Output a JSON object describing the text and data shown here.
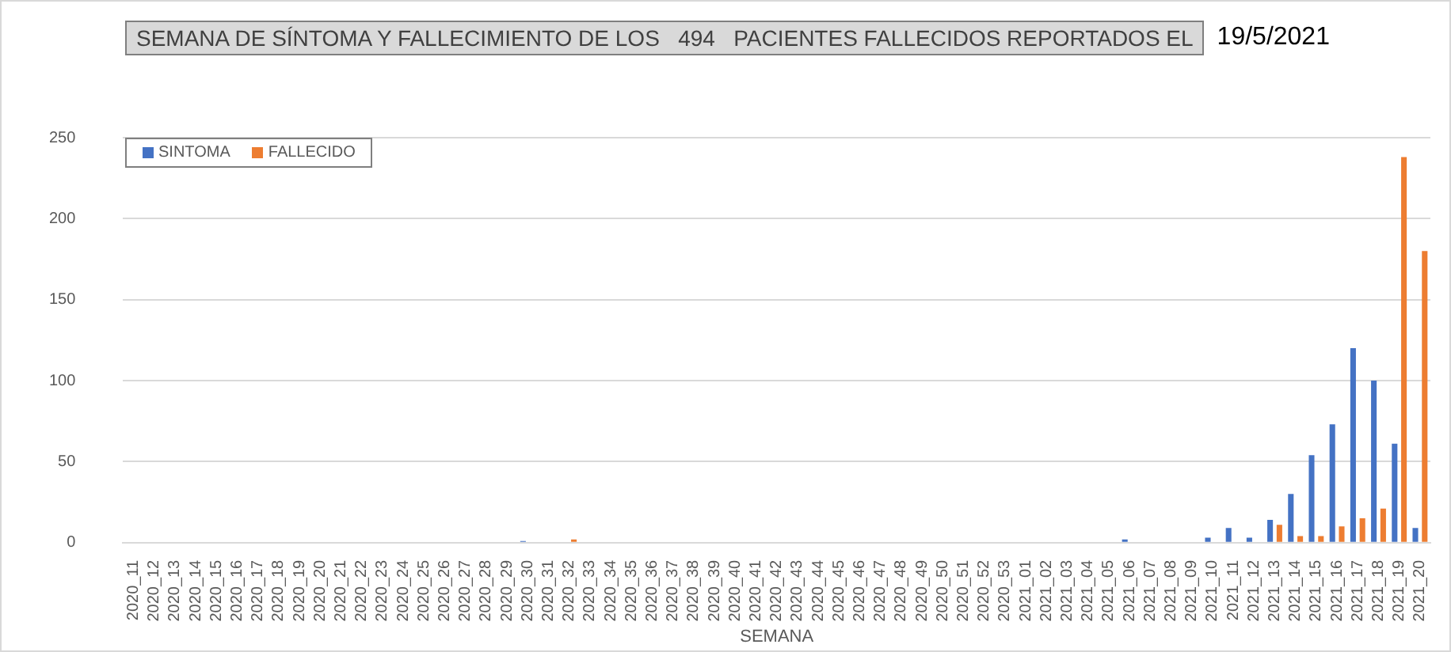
{
  "chart_data": {
    "type": "bar",
    "title": "SEMANA DE SÍNTOMA Y FALLECIMIENTO DE LOS   494   PACIENTES FALLECIDOS REPORTADOS EL",
    "subtitle": "19/5/2021",
    "xlabel": "SEMANA",
    "categories": [
      "2020_11",
      "2020_12",
      "2020_13",
      "2020_14",
      "2020_15",
      "2020_16",
      "2020_17",
      "2020_18",
      "2020_19",
      "2020_20",
      "2020_21",
      "2020_22",
      "2020_23",
      "2020_24",
      "2020_25",
      "2020_26",
      "2020_27",
      "2020_28",
      "2020_29",
      "2020_30",
      "2020_31",
      "2020_32",
      "2020_33",
      "2020_34",
      "2020_35",
      "2020_36",
      "2020_37",
      "2020_38",
      "2020_39",
      "2020_40",
      "2020_41",
      "2020_42",
      "2020_43",
      "2020_44",
      "2020_45",
      "2020_46",
      "2020_47",
      "2020_48",
      "2020_49",
      "2020_50",
      "2020_51",
      "2020_52",
      "2020_53",
      "2021_01",
      "2021_02",
      "2021_03",
      "2021_04",
      "2021_05",
      "2021_06",
      "2021_07",
      "2021_08",
      "2021_09",
      "2021_10",
      "2021_11",
      "2021_12",
      "2021_13",
      "2021_14",
      "2021_15",
      "2021_16",
      "2021_17",
      "2021_18",
      "2021_19",
      "2021_20"
    ],
    "series": [
      {
        "name": "SINTOMA",
        "color": "#4472c4",
        "values": [
          0,
          0,
          0,
          0,
          0,
          0,
          0,
          0,
          0,
          0,
          0,
          0,
          0,
          0,
          0,
          0,
          0,
          0,
          0,
          1,
          0,
          0,
          0,
          0,
          0,
          0,
          0,
          0,
          0,
          0,
          0,
          0,
          0,
          0,
          0,
          0,
          0,
          0,
          0,
          0,
          0,
          0,
          0,
          0,
          0,
          0,
          0,
          0,
          2,
          0,
          0,
          0,
          3,
          9,
          3,
          14,
          30,
          54,
          73,
          120,
          100,
          61,
          9
        ]
      },
      {
        "name": "FALLECIDO",
        "color": "#ed7d31",
        "values": [
          0,
          0,
          0,
          0,
          0,
          0,
          0,
          0,
          0,
          0,
          0,
          0,
          0,
          0,
          0,
          0,
          0,
          0,
          0,
          0,
          0,
          2,
          0,
          0,
          0,
          0,
          0,
          0,
          0,
          0,
          0,
          0,
          0,
          0,
          0,
          0,
          0,
          0,
          0,
          0,
          0,
          0,
          0,
          0,
          0,
          0,
          0,
          0,
          0,
          0,
          0,
          0,
          0,
          0,
          0,
          11,
          4,
          4,
          10,
          15,
          21,
          238,
          180
        ]
      }
    ],
    "ylim": [
      0,
      250
    ],
    "yticks": [
      0,
      50,
      100,
      150,
      200,
      250
    ],
    "grid": "y",
    "legend": "top left"
  }
}
